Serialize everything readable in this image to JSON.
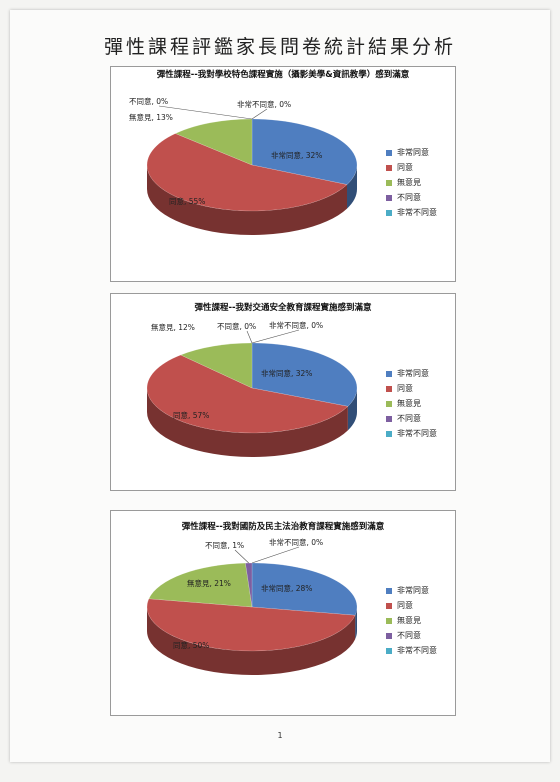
{
  "page": {
    "title": "彈性課程評鑑家長問卷統計結果分析",
    "page_number": "1"
  },
  "colors": {
    "非常同意": "#4f7ec0",
    "同意": "#c0504d",
    "無意見": "#9bbb59",
    "不同意": "#7d5fa0",
    "非常不同意": "#4bacc6"
  },
  "legend": [
    "非常同意",
    "同意",
    "無意見",
    "不同意",
    "非常不同意"
  ],
  "chart_data": [
    {
      "type": "pie",
      "title": "彈性課程--我對學校特色課程實施（攝影美學&資訊教學）感到滿意",
      "categories": [
        "非常同意",
        "同意",
        "無意見",
        "不同意",
        "非常不同意"
      ],
      "values": [
        32,
        55,
        13,
        0,
        0
      ],
      "labels": [
        "非常同意, 32%",
        "同意, 55%",
        "無意見, 13%",
        "不同意, 0%",
        "非常不同意, 0%"
      ],
      "legend_position": "right"
    },
    {
      "type": "pie",
      "title": "彈性課程--我對交通安全教育課程實施感到滿意",
      "categories": [
        "非常同意",
        "同意",
        "無意見",
        "不同意",
        "非常不同意"
      ],
      "values": [
        32,
        57,
        12,
        0,
        0
      ],
      "labels": [
        "非常同意, 32%",
        "同意, 57%",
        "無意見, 12%",
        "不同意, 0%",
        "非常不同意, 0%"
      ],
      "legend_position": "right"
    },
    {
      "type": "pie",
      "title": "彈性課程--我對國防及民主法治教育課程實施感到滿意",
      "categories": [
        "非常同意",
        "同意",
        "無意見",
        "不同意",
        "非常不同意"
      ],
      "values": [
        28,
        50,
        21,
        1,
        0
      ],
      "labels": [
        "非常同意, 28%",
        "同意, 50%",
        "無意見, 21%",
        "不同意, 1%",
        "非常不同意, 0%"
      ],
      "legend_position": "right"
    }
  ]
}
